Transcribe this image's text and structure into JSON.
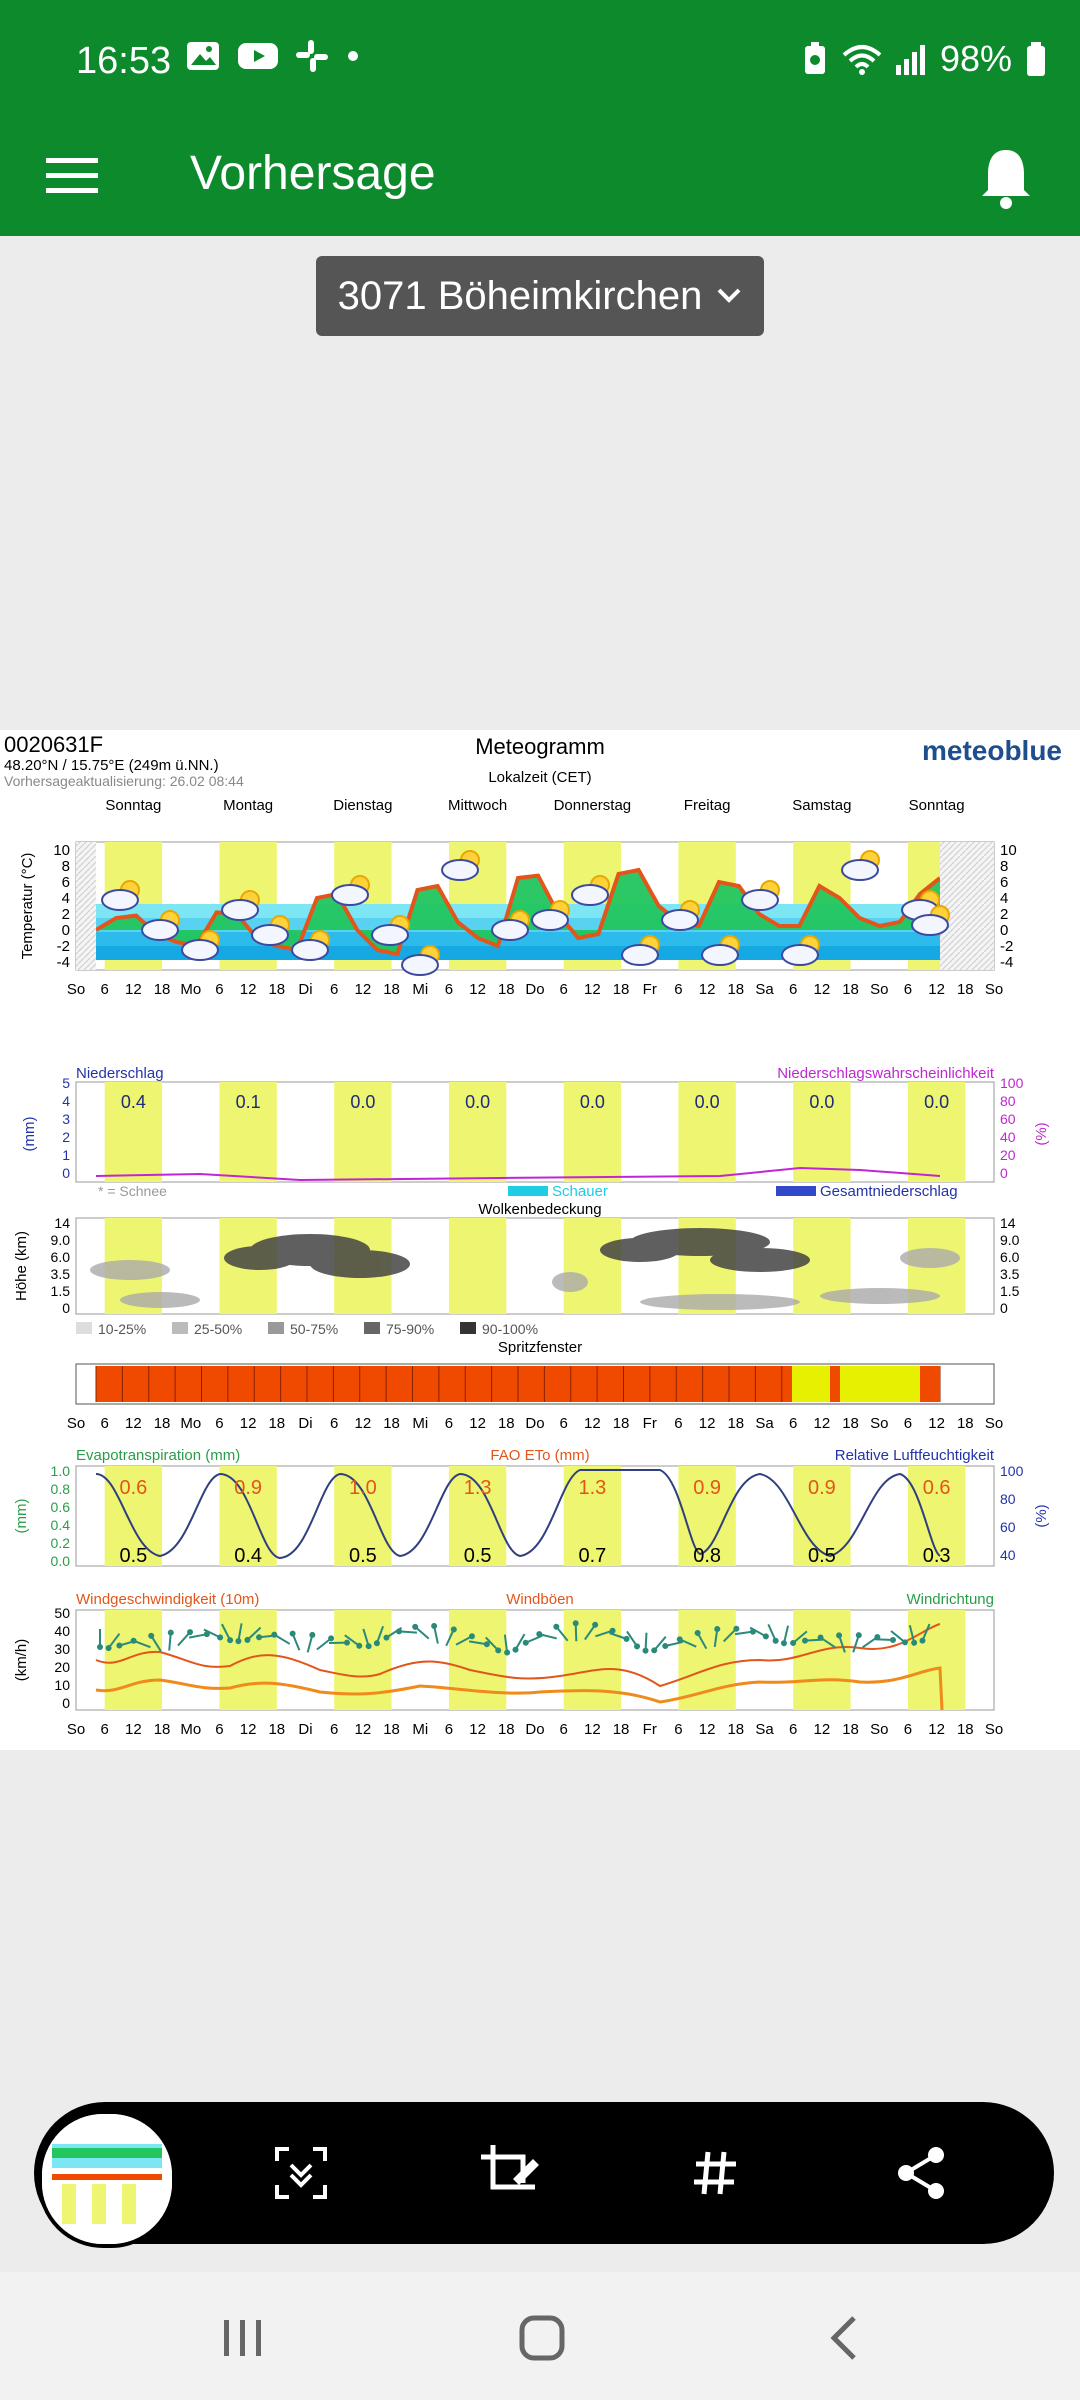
{
  "status_bar": {
    "time": "16:53",
    "battery": "98%"
  },
  "app_bar": {
    "title": "Vorhersage"
  },
  "location_dropdown": {
    "label": "3071 Böheimkirchen"
  },
  "meteogram": {
    "station_id": "0020631F",
    "coords": "48.20°N / 15.75°E (249m ü.NN.)",
    "updated": "Vorhersageaktualisierung: 26.02 08:44",
    "title": "Meteogramm",
    "brand": "meteoblue",
    "timezone": "Lokalzeit (CET)",
    "days": [
      "Sonntag",
      "Montag",
      "Dienstag",
      "Mittwoch",
      "Donnerstag",
      "Freitag",
      "Samstag",
      "Sonntag"
    ],
    "x_ticks": [
      "So",
      "6",
      "12",
      "18",
      "Mo",
      "6",
      "12",
      "18",
      "Di",
      "6",
      "12",
      "18",
      "Mi",
      "6",
      "12",
      "18",
      "Do",
      "6",
      "12",
      "18",
      "Fr",
      "6",
      "12",
      "18",
      "Sa",
      "6",
      "12",
      "18",
      "So",
      "6",
      "12",
      "18",
      "So"
    ],
    "temp": {
      "ylabel": "Temperatur (°C)",
      "ticks": [
        "10",
        "8",
        "6",
        "4",
        "2",
        "0",
        "-2",
        "-4"
      ],
      "curve": [
        0.0,
        1.5,
        1.8,
        -0.5,
        -1.5,
        -2.0,
        2.2,
        2.0,
        -1.0,
        -2.0,
        -2.5,
        4.0,
        4.5,
        0.0,
        -2.5,
        -3.0,
        5.0,
        5.5,
        1.0,
        -1.0,
        -2.0,
        6.5,
        6.8,
        2.0,
        -1.0,
        -0.5,
        7.0,
        7.5,
        3.0,
        1.0,
        0.5,
        6.0,
        5.5,
        2.0,
        0.5,
        0.5,
        5.5,
        4.0,
        1.5,
        0.5,
        1.0,
        4.5,
        6.5
      ]
    },
    "precip": {
      "title": "Niederschlag",
      "prob_title": "Niederschlagswahrscheinlichkeit",
      "ylabel": "(mm)",
      "ylabel_right": "(%)",
      "ticks_left": [
        "5",
        "4",
        "3",
        "2",
        "1",
        "0"
      ],
      "ticks_right": [
        "100",
        "80",
        "60",
        "40",
        "20",
        "0"
      ],
      "daily": [
        "0.4",
        "0.1",
        "0.0",
        "0.0",
        "0.0",
        "0.0",
        "0.0",
        "0.0"
      ],
      "snow_note": "* = Schnee",
      "legend_shower": "Schauer",
      "legend_total": "Gesamtniederschlag"
    },
    "clouds": {
      "title": "Wolkenbedeckung",
      "ylabel": "Höhe (km)",
      "ticks": [
        "14",
        "9.0",
        "6.0",
        "3.5",
        "1.5",
        "0"
      ],
      "legend": [
        "10-25%",
        "25-50%",
        "50-75%",
        "75-90%",
        "90-100%"
      ]
    },
    "spray": {
      "title": "Spritzfenster"
    },
    "evapo": {
      "title_left": "Evapotranspiration (mm)",
      "title_mid": "FAO ETo (mm)",
      "title_right": "Relative Luftfeuchtigkeit",
      "ylabel": "(mm)",
      "ylabel_right": "(%)",
      "ticks_left": [
        "1.0",
        "0.8",
        "0.6",
        "0.4",
        "0.2",
        "0.0"
      ],
      "ticks_right": [
        "100",
        "80",
        "60",
        "40"
      ],
      "eto": [
        "0.6",
        "0.9",
        "1.0",
        "1.3",
        "1.3",
        "0.9",
        "0.9",
        "0.6"
      ],
      "et": [
        "0.5",
        "0.4",
        "0.5",
        "0.5",
        "0.7",
        "0.8",
        "0.5",
        "0.3"
      ]
    },
    "wind": {
      "title_left": "Windgeschwindigkeit (10m)",
      "title_mid": "Windböen",
      "title_right": "Windrichtung",
      "ylabel": "(km/h)",
      "ticks": [
        "50",
        "40",
        "30",
        "20",
        "10",
        "0"
      ]
    }
  },
  "colors": {
    "green": "#0c8a2c",
    "daylight": "#eef570",
    "spray_red": "#f04a00",
    "spray_yellow": "#e7f000"
  }
}
